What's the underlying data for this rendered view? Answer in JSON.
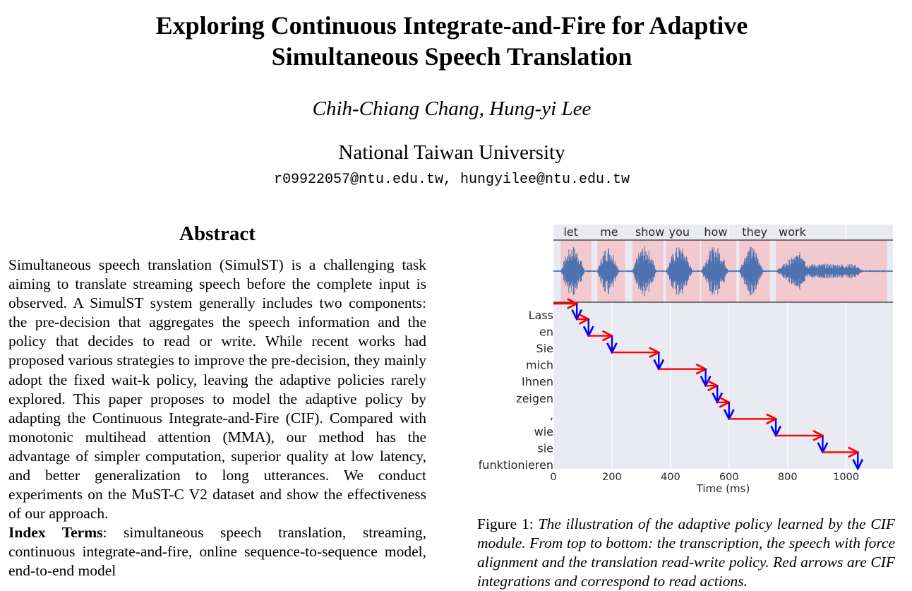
{
  "paper": {
    "title_line1": "Exploring Continuous Integrate-and-Fire for Adaptive",
    "title_line2": "Simultaneous Speech Translation",
    "authors": "Chih-Chiang Chang, Hung-yi Lee",
    "affiliation": "National Taiwan University",
    "emails": "r09922057@ntu.edu.tw, hungyilee@ntu.edu.tw"
  },
  "abstract": {
    "heading": "Abstract",
    "text": "Simultaneous speech translation (SimulST) is a challenging task aiming to translate streaming speech before the complete input is observed.  A SimulST system generally includes two components: the pre-decision that aggregates the speech information and the policy that decides to read or write.  While recent works had proposed various strategies to improve the pre-decision, they mainly adopt the fixed wait-k policy, leaving the adaptive policies rarely explored. This paper proposes to model the adaptive policy by adapting the Continuous Integrate-and-Fire (CIF). Compared with monotonic multihead attention (MMA), our method has the advantage of simpler computation, superior quality at low latency, and better generalization to long utterances. We conduct experiments on the MuST-C V2 dataset and show the effectiveness of our approach.",
    "index_terms_label": "Index Terms",
    "index_terms": ": simultaneous speech translation, streaming, continuous integrate-and-fire, online sequence-to-sequence model, end-to-end model"
  },
  "figure": {
    "caption_label": "Figure 1:",
    "caption_text": "The illustration of the adaptive policy learned by the CIF module. From top to bottom: the transcription, the speech with force alignment and the translation read-write policy. Red arrows are CIF integrations and correspond to read actions."
  },
  "chart_data": {
    "type": "step",
    "xlabel": "Time (ms)",
    "xlim": [
      0,
      1160
    ],
    "xticks": [
      0,
      200,
      400,
      600,
      800,
      1000
    ],
    "transcription_words": [
      {
        "word": "let",
        "start": 25,
        "end": 130
      },
      {
        "word": "me",
        "start": 150,
        "end": 245
      },
      {
        "word": "show",
        "start": 270,
        "end": 375
      },
      {
        "word": "you",
        "start": 385,
        "end": 500
      },
      {
        "word": "how",
        "start": 505,
        "end": 625
      },
      {
        "word": "they",
        "start": 635,
        "end": 740
      },
      {
        "word": "work",
        "start": 760,
        "end": 1140
      }
    ],
    "translation_tokens": [
      "Lass",
      "en",
      "Sie",
      "mich",
      "Ihnen",
      "zeigen",
      ",",
      "wie",
      "sie",
      "funktionieren"
    ],
    "read_write_steps": [
      {
        "token": "Lass",
        "read_from": 0,
        "read_to": 80
      },
      {
        "token": "en",
        "read_from": 80,
        "read_to": 120
      },
      {
        "token": "Sie",
        "read_from": 120,
        "read_to": 200
      },
      {
        "token": "mich",
        "read_from": 200,
        "read_to": 360
      },
      {
        "token": "Ihnen",
        "read_from": 360,
        "read_to": 520
      },
      {
        "token": "zeigen",
        "read_from": 520,
        "read_to": 560
      },
      {
        "token": ",",
        "read_from": 560,
        "read_to": 600
      },
      {
        "token": "wie",
        "read_from": 600,
        "read_to": 760
      },
      {
        "token": "sie",
        "read_from": 760,
        "read_to": 920
      },
      {
        "token": "funktionieren",
        "read_from": 920,
        "read_to": 1040
      }
    ],
    "read_arrow_color": "#ff0000",
    "write_arrow_color": "#0000ff",
    "waveform_color": "#4c72b0",
    "word_span_color": "#f2c9cf",
    "plot_bg_color": "#eaeaf2"
  }
}
